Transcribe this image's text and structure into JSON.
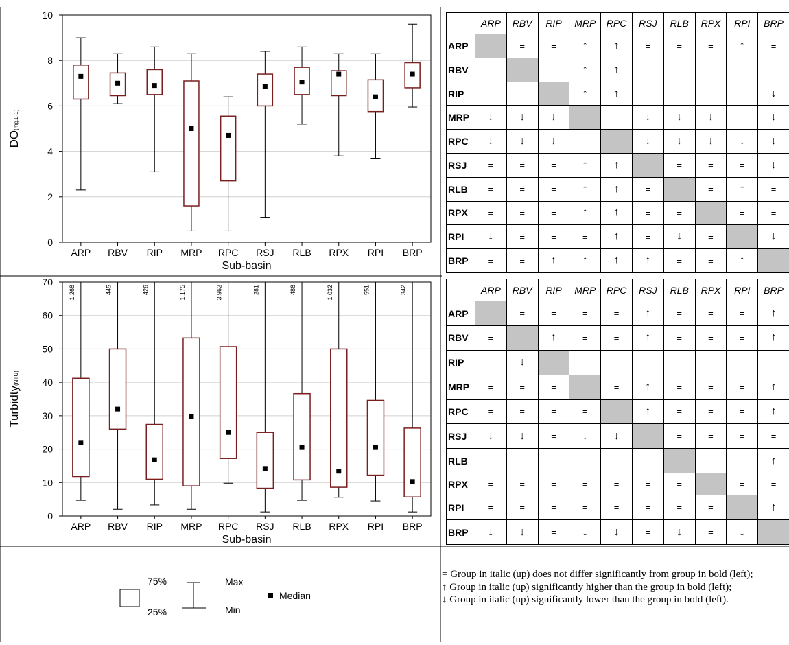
{
  "chart_data": [
    {
      "type": "box",
      "xlabel": "Sub-basin",
      "ylabel": "DO",
      "ylabel_unit": "(mg.L-1)",
      "ylim": [
        0,
        10
      ],
      "yticks": [
        "0",
        "2",
        "4",
        "6",
        "8",
        "10"
      ],
      "grid": "horizontal",
      "categories": [
        "ARP",
        "RBV",
        "RIP",
        "MRP",
        "RPC",
        "RSJ",
        "RLB",
        "RPX",
        "RPI",
        "BRP"
      ],
      "boxes": [
        {
          "min": 2.3,
          "q1": 6.3,
          "median": 7.3,
          "q3": 7.8,
          "max": 9.0
        },
        {
          "min": 6.1,
          "q1": 6.45,
          "median": 7.0,
          "q3": 7.45,
          "max": 8.3
        },
        {
          "min": 3.1,
          "q1": 6.5,
          "median": 6.9,
          "q3": 7.6,
          "max": 8.6
        },
        {
          "min": 0.5,
          "q1": 1.6,
          "median": 5.0,
          "q3": 7.1,
          "max": 8.3
        },
        {
          "min": 0.5,
          "q1": 2.7,
          "median": 4.7,
          "q3": 5.55,
          "max": 6.4
        },
        {
          "min": 1.1,
          "q1": 6.0,
          "median": 6.85,
          "q3": 7.4,
          "max": 8.4
        },
        {
          "min": 5.2,
          "q1": 6.5,
          "median": 7.05,
          "q3": 7.7,
          "max": 8.6
        },
        {
          "min": 3.8,
          "q1": 6.45,
          "median": 7.4,
          "q3": 7.55,
          "max": 8.3
        },
        {
          "min": 3.7,
          "q1": 5.75,
          "median": 6.4,
          "q3": 7.15,
          "max": 8.3
        },
        {
          "min": 5.95,
          "q1": 6.8,
          "median": 7.4,
          "q3": 7.9,
          "max": 9.6
        }
      ]
    },
    {
      "type": "box",
      "xlabel": "Sub-basin",
      "ylabel": "Turbidty",
      "ylabel_unit": "(NTU)",
      "ylim": [
        0,
        70
      ],
      "yticks": [
        "0",
        "10",
        "20",
        "30",
        "40",
        "50",
        "60",
        "70"
      ],
      "grid": "horizontal",
      "categories": [
        "ARP",
        "RBV",
        "RIP",
        "MRP",
        "RPC",
        "RSJ",
        "RLB",
        "RPX",
        "RPI",
        "BRP"
      ],
      "max_labels": [
        "1.268",
        "445",
        "426",
        "1.175",
        "3.962",
        "281",
        "486",
        "1.032",
        "551",
        "342"
      ],
      "boxes": [
        {
          "min": 4.7,
          "q1": 11.8,
          "median": 22.0,
          "q3": 41.2,
          "max": 70
        },
        {
          "min": 2.0,
          "q1": 26.0,
          "median": 32.0,
          "q3": 50.0,
          "max": 70
        },
        {
          "min": 3.3,
          "q1": 11.0,
          "median": 16.8,
          "q3": 27.4,
          "max": 70
        },
        {
          "min": 2.0,
          "q1": 9.0,
          "median": 29.8,
          "q3": 53.3,
          "max": 70
        },
        {
          "min": 9.8,
          "q1": 17.2,
          "median": 25.0,
          "q3": 50.7,
          "max": 70
        },
        {
          "min": 1.2,
          "q1": 8.3,
          "median": 14.2,
          "q3": 25.0,
          "max": 70
        },
        {
          "min": 4.7,
          "q1": 10.8,
          "median": 20.5,
          "q3": 36.6,
          "max": 70
        },
        {
          "min": 5.6,
          "q1": 8.6,
          "median": 13.4,
          "q3": 50.0,
          "max": 70
        },
        {
          "min": 4.5,
          "q1": 12.2,
          "median": 20.5,
          "q3": 34.6,
          "max": 70
        },
        {
          "min": 1.2,
          "q1": 5.7,
          "median": 10.3,
          "q3": 26.3,
          "max": 70
        }
      ]
    },
    {
      "type": "table",
      "columns": [
        "ARP",
        "RBV",
        "RIP",
        "MRP",
        "RPC",
        "RSJ",
        "RLB",
        "RPX",
        "RPI",
        "BRP"
      ],
      "rows": [
        "ARP",
        "RBV",
        "RIP",
        "MRP",
        "RPC",
        "RSJ",
        "RLB",
        "RPX",
        "RPI",
        "BRP"
      ],
      "cells": [
        [
          "",
          "=",
          "=",
          "↑",
          "↑",
          "=",
          "=",
          "=",
          "↑",
          "="
        ],
        [
          "=",
          "",
          "=",
          "↑",
          "↑",
          "=",
          "=",
          "=",
          "=",
          "="
        ],
        [
          "=",
          "=",
          "",
          "↑",
          "↑",
          "=",
          "=",
          "=",
          "=",
          "↓"
        ],
        [
          "↓",
          "↓",
          "↓",
          "",
          "=",
          "↓",
          "↓",
          "↓",
          "=",
          "↓"
        ],
        [
          "↓",
          "↓",
          "↓",
          "=",
          "",
          "↓",
          "↓",
          "↓",
          "↓",
          "↓"
        ],
        [
          "=",
          "=",
          "=",
          "↑",
          "↑",
          "",
          "=",
          "=",
          "=",
          "↓"
        ],
        [
          "=",
          "=",
          "=",
          "↑",
          "↑",
          "=",
          "",
          "=",
          "↑",
          "="
        ],
        [
          "=",
          "=",
          "=",
          "↑",
          "↑",
          "=",
          "=",
          "",
          "=",
          "="
        ],
        [
          "↓",
          "=",
          "=",
          "=",
          "↑",
          "=",
          "↓",
          "=",
          "",
          "↓"
        ],
        [
          "=",
          "=",
          "↑",
          "↑",
          "↑",
          "↑",
          "=",
          "=",
          "↑",
          ""
        ]
      ]
    },
    {
      "type": "table",
      "columns": [
        "ARP",
        "RBV",
        "RIP",
        "MRP",
        "RPC",
        "RSJ",
        "RLB",
        "RPX",
        "RPI",
        "BRP"
      ],
      "rows": [
        "ARP",
        "RBV",
        "RIP",
        "MRP",
        "RPC",
        "RSJ",
        "RLB",
        "RPX",
        "RPI",
        "BRP"
      ],
      "cells": [
        [
          "",
          "=",
          "=",
          "=",
          "=",
          "↑",
          "=",
          "=",
          "=",
          "↑"
        ],
        [
          "=",
          "",
          "↑",
          "=",
          "=",
          "↑",
          "=",
          "=",
          "=",
          "↑"
        ],
        [
          "=",
          "↓",
          "",
          "=",
          "=",
          "=",
          "=",
          "=",
          "=",
          "="
        ],
        [
          "=",
          "=",
          "=",
          "",
          "=",
          "↑",
          "=",
          "=",
          "=",
          "↑"
        ],
        [
          "=",
          "=",
          "=",
          "=",
          "",
          "↑",
          "=",
          "=",
          "=",
          "↑"
        ],
        [
          "↓",
          "↓",
          "=",
          "↓",
          "↓",
          "",
          "=",
          "=",
          "=",
          "="
        ],
        [
          "=",
          "=",
          "=",
          "=",
          "=",
          "=",
          "",
          "=",
          "=",
          "↑"
        ],
        [
          "=",
          "=",
          "=",
          "=",
          "=",
          "=",
          "=",
          "",
          "=",
          "="
        ],
        [
          "=",
          "=",
          "=",
          "=",
          "=",
          "=",
          "=",
          "=",
          "",
          "↑"
        ],
        [
          "↓",
          "↓",
          "=",
          "↓",
          "↓",
          "=",
          "↓",
          "=",
          "↓",
          ""
        ]
      ]
    }
  ],
  "legend": {
    "box_top": "75%",
    "box_bottom": "25%",
    "whisker_top": "Max",
    "whisker_bottom": "Min",
    "median": "Median"
  },
  "notes": [
    "= Group in italic (up) does not differ significantly from group in bold (left);",
    "↑ Group in italic (up) significantly higher than the group in bold (left);",
    "↓ Group in italic (up) significantly lower than the group in bold (left)."
  ],
  "colors": {
    "box_stroke": "#7a1f1f",
    "grid": "#d0d0d0",
    "diagonal": "#c4c4c4",
    "frame": "#000000"
  }
}
